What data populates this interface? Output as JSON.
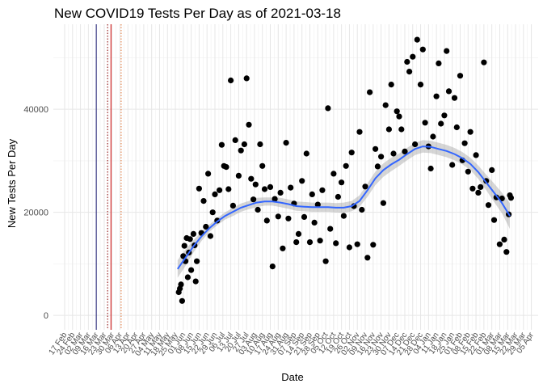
{
  "chart_data": {
    "type": "scatter",
    "title": "New COVID19 Tests Per Day as of 2021-03-18",
    "xlabel": "Date",
    "ylabel": "New Tests Per Day",
    "xlim": [
      "2020-02-07",
      "2021-04-11"
    ],
    "ylim": [
      -2800,
      56500
    ],
    "grid": true,
    "y_ticks": [
      0,
      20000,
      40000
    ],
    "y_tick_labels": [
      "0",
      "20000",
      "40000"
    ],
    "x_ticks": [
      "2020-02-17",
      "2020-02-24",
      "2020-03-02",
      "2020-03-09",
      "2020-03-16",
      "2020-03-23",
      "2020-03-30",
      "2020-04-06",
      "2020-04-13",
      "2020-04-20",
      "2020-04-27",
      "2020-05-04",
      "2020-05-11",
      "2020-05-18",
      "2020-05-25",
      "2020-06-01",
      "2020-06-08",
      "2020-06-15",
      "2020-06-22",
      "2020-06-29",
      "2020-07-06",
      "2020-07-13",
      "2020-07-20",
      "2020-07-27",
      "2020-08-03",
      "2020-08-10",
      "2020-08-17",
      "2020-08-24",
      "2020-08-31",
      "2020-09-07",
      "2020-09-14",
      "2020-09-21",
      "2020-09-28",
      "2020-10-05",
      "2020-10-12",
      "2020-10-19",
      "2020-10-26",
      "2020-11-02",
      "2020-11-09",
      "2020-11-16",
      "2020-11-23",
      "2020-11-30",
      "2020-12-07",
      "2020-12-14",
      "2020-12-21",
      "2020-12-28",
      "2021-01-04",
      "2021-01-11",
      "2021-01-18",
      "2021-01-25",
      "2021-02-01",
      "2021-02-08",
      "2021-02-15",
      "2021-02-22",
      "2021-03-01",
      "2021-03-08",
      "2021-03-15",
      "2021-03-22",
      "2021-03-29",
      "2021-04-05"
    ],
    "x_tick_labels": [
      "17 Feb",
      "24 Feb",
      "02 Mar",
      "09 Mar",
      "16 Mar",
      "23 Mar",
      "30 Mar",
      "06 Apr",
      "13 Apr",
      "20 Apr",
      "27 Apr",
      "04 May",
      "11 May",
      "18 May",
      "25 May",
      "01 Jun",
      "08 Jun",
      "15 Jun",
      "22 Jun",
      "29 Jun",
      "06 Jul",
      "13 Jul",
      "20 Jul",
      "27 Jul",
      "03 Aug",
      "10 Aug",
      "17 Aug",
      "24 Aug",
      "31 Aug",
      "07 Sep",
      "14 Sep",
      "21 Sep",
      "28 Sep",
      "05 Oct",
      "12 Oct",
      "19 Oct",
      "26 Oct",
      "02 Nov",
      "09 Nov",
      "16 Nov",
      "23 Nov",
      "30 Nov",
      "07 Dec",
      "14 Dec",
      "21 Dec",
      "28 Dec",
      "04 Jan",
      "11 Jan",
      "18 Jan",
      "25 Jan",
      "01 Feb",
      "08 Feb",
      "15 Feb",
      "22 Feb",
      "01 Mar",
      "08 Mar",
      "15 Mar",
      "22 Mar",
      "29 Mar",
      "05 Apr"
    ],
    "reference_lines": [
      {
        "x": "2020-03-16",
        "style": "solid",
        "color": "#191970"
      },
      {
        "x": "2020-03-26",
        "style": "dotted",
        "color": "#8b0000"
      },
      {
        "x": "2020-03-29",
        "style": "solid",
        "color": "#cc0000"
      },
      {
        "x": "2020-04-07",
        "style": "dotted",
        "color": "#e07030"
      }
    ],
    "smooth": {
      "color": "#3366ff",
      "band_color": "#999999",
      "x": [
        "2020-05-27",
        "2020-06-03",
        "2020-06-10",
        "2020-06-17",
        "2020-06-24",
        "2020-07-01",
        "2020-07-08",
        "2020-07-15",
        "2020-07-22",
        "2020-07-29",
        "2020-08-05",
        "2020-08-12",
        "2020-08-19",
        "2020-08-26",
        "2020-09-02",
        "2020-09-09",
        "2020-09-16",
        "2020-09-23",
        "2020-09-30",
        "2020-10-07",
        "2020-10-14",
        "2020-10-21",
        "2020-10-28",
        "2020-11-04",
        "2020-11-11",
        "2020-11-18",
        "2020-11-25",
        "2020-12-02",
        "2020-12-09",
        "2020-12-16",
        "2020-12-23",
        "2020-12-30",
        "2021-01-06",
        "2021-01-13",
        "2021-01-20",
        "2021-01-27",
        "2021-02-03",
        "2021-02-10",
        "2021-02-17",
        "2021-02-24",
        "2021-03-03",
        "2021-03-10",
        "2021-03-17"
      ],
      "y": [
        9000,
        11200,
        13400,
        15300,
        16900,
        18200,
        19300,
        20100,
        20900,
        21400,
        21900,
        22100,
        22100,
        21900,
        21600,
        21200,
        21100,
        21000,
        21000,
        21000,
        20900,
        20900,
        21200,
        22200,
        24300,
        26600,
        28200,
        29300,
        30200,
        31300,
        32300,
        32800,
        32700,
        32300,
        31900,
        31300,
        30500,
        29400,
        27800,
        25800,
        23800,
        21800,
        19300
      ],
      "lower": [
        7300,
        9600,
        12200,
        14400,
        16200,
        17500,
        18600,
        19300,
        20100,
        20600,
        21000,
        21300,
        21300,
        21000,
        20700,
        20300,
        20200,
        20100,
        20100,
        20100,
        20000,
        19900,
        20200,
        21100,
        23000,
        25300,
        26900,
        28000,
        29000,
        30100,
        31100,
        31600,
        31500,
        31100,
        30700,
        30100,
        29300,
        28200,
        26500,
        24300,
        22000,
        19800,
        16800
      ],
      "upper": [
        10700,
        12800,
        14600,
        16200,
        17600,
        18900,
        20000,
        20900,
        21700,
        22200,
        22800,
        22900,
        22900,
        22800,
        22500,
        22100,
        22000,
        21900,
        21900,
        21900,
        21800,
        21900,
        22200,
        23300,
        25600,
        27900,
        29500,
        30600,
        31400,
        32500,
        33500,
        34000,
        33900,
        33500,
        33100,
        32500,
        31700,
        30600,
        29100,
        27300,
        25600,
        23800,
        21800
      ]
    },
    "points": {
      "color": "#000000",
      "x": [
        "2020-05-28",
        "2020-05-29",
        "2020-05-30",
        "2020-05-31",
        "2020-06-01",
        "2020-06-02",
        "2020-06-03",
        "2020-06-04",
        "2020-06-05",
        "2020-06-06",
        "2020-06-07",
        "2020-06-08",
        "2020-06-10",
        "2020-06-11",
        "2020-06-12",
        "2020-06-13",
        "2020-06-15",
        "2020-06-17",
        "2020-06-19",
        "2020-06-21",
        "2020-06-23",
        "2020-06-25",
        "2020-06-27",
        "2020-06-29",
        "2020-07-01",
        "2020-07-03",
        "2020-07-05",
        "2020-07-07",
        "2020-07-09",
        "2020-07-11",
        "2020-07-13",
        "2020-07-15",
        "2020-07-17",
        "2020-07-20",
        "2020-07-22",
        "2020-07-25",
        "2020-07-27",
        "2020-07-29",
        "2020-07-31",
        "2020-08-02",
        "2020-08-04",
        "2020-08-06",
        "2020-08-08",
        "2020-08-10",
        "2020-08-12",
        "2020-08-14",
        "2020-08-17",
        "2020-08-19",
        "2020-08-21",
        "2020-08-24",
        "2020-08-26",
        "2020-08-28",
        "2020-08-31",
        "2020-09-02",
        "2020-09-04",
        "2020-09-07",
        "2020-09-09",
        "2020-09-11",
        "2020-09-14",
        "2020-09-16",
        "2020-09-18",
        "2020-09-21",
        "2020-09-23",
        "2020-09-25",
        "2020-09-28",
        "2020-09-30",
        "2020-10-02",
        "2020-10-05",
        "2020-10-07",
        "2020-10-09",
        "2020-10-12",
        "2020-10-14",
        "2020-10-16",
        "2020-10-19",
        "2020-10-21",
        "2020-10-23",
        "2020-10-26",
        "2020-10-28",
        "2020-10-30",
        "2020-11-02",
        "2020-11-04",
        "2020-11-06",
        "2020-11-09",
        "2020-11-11",
        "2020-11-13",
        "2020-11-16",
        "2020-11-18",
        "2020-11-20",
        "2020-11-23",
        "2020-11-25",
        "2020-11-27",
        "2020-11-30",
        "2020-12-02",
        "2020-12-04",
        "2020-12-07",
        "2020-12-09",
        "2020-12-11",
        "2020-12-14",
        "2020-12-16",
        "2020-12-18",
        "2020-12-21",
        "2020-12-23",
        "2020-12-25",
        "2020-12-28",
        "2020-12-30",
        "2021-01-01",
        "2021-01-04",
        "2021-01-06",
        "2021-01-08",
        "2021-01-11",
        "2021-01-13",
        "2021-01-15",
        "2021-01-18",
        "2021-01-20",
        "2021-01-22",
        "2021-01-25",
        "2021-01-27",
        "2021-01-29",
        "2021-02-01",
        "2021-02-03",
        "2021-02-05",
        "2021-02-08",
        "2021-02-10",
        "2021-02-12",
        "2021-02-15",
        "2021-02-17",
        "2021-02-19",
        "2021-02-22",
        "2021-02-24",
        "2021-02-26",
        "2021-03-01",
        "2021-03-03",
        "2021-03-05",
        "2021-03-08",
        "2021-03-10",
        "2021-03-12",
        "2021-03-14",
        "2021-03-16",
        "2021-03-17",
        "2021-03-18"
      ],
      "y": [
        4500,
        5200,
        6000,
        2800,
        11500,
        13500,
        10500,
        15000,
        7400,
        12200,
        14800,
        8800,
        15800,
        13600,
        6600,
        10500,
        24600,
        16000,
        22200,
        17200,
        27500,
        15400,
        20000,
        23500,
        18400,
        24300,
        33100,
        29000,
        28800,
        24500,
        45600,
        21300,
        34000,
        27100,
        32000,
        33200,
        46000,
        37000,
        26500,
        22500,
        25400,
        20500,
        33200,
        29000,
        24500,
        18400,
        24900,
        9500,
        22600,
        19200,
        23800,
        13000,
        33500,
        18800,
        24800,
        21700,
        14200,
        15800,
        26100,
        19100,
        31400,
        14200,
        23500,
        18000,
        21500,
        14500,
        24300,
        10500,
        40200,
        16800,
        27500,
        14000,
        23000,
        25800,
        19300,
        29000,
        13200,
        31600,
        21200,
        13800,
        35600,
        20500,
        25000,
        11200,
        43300,
        13700,
        32300,
        28900,
        30800,
        21800,
        40800,
        36100,
        44800,
        31400,
        39600,
        38600,
        36100,
        31800,
        49200,
        47300,
        50200,
        33200,
        53500,
        44800,
        51600,
        37400,
        32800,
        28500,
        34700,
        42500,
        48900,
        37200,
        38800,
        51300,
        43500,
        29200,
        42200,
        36500,
        46500,
        30100,
        33400,
        27900,
        35600,
        24600,
        31100,
        23800,
        24900,
        49100,
        26100,
        21400,
        28200,
        18500,
        22900,
        13800,
        22700,
        14700,
        12300,
        19600,
        23300,
        22800
      ]
    }
  }
}
